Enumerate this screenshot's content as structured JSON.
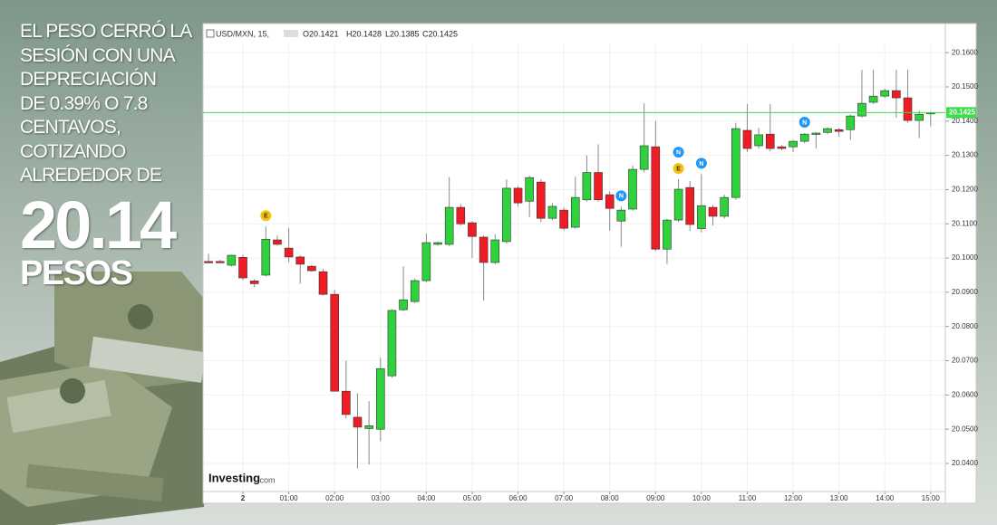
{
  "headline": {
    "lines": [
      "EL PESO CERRÓ LA",
      "SESIÓN CON UNA",
      "DEPRECIACIÓN",
      "DE 0.39% O 7.8",
      "CENTAVOS,",
      "COTIZANDO",
      "ALREDEDOR DE"
    ],
    "big_number": "20.14",
    "unit": "PESOS"
  },
  "chart_data": {
    "type": "candlestick",
    "header": {
      "symbol": "USD/MXN, 15,",
      "open_text": "O20.1421",
      "high_text": "H20.1428",
      "low_text": "L20.1385",
      "close_text": "C20.1425"
    },
    "watermark": {
      "brand": "Investing",
      "suffix": ".com"
    },
    "up_color": "#2fd13c",
    "down_color": "#ee1c25",
    "grid": true,
    "x": [
      -0.75,
      -0.5,
      -0.25,
      0,
      0.25,
      0.5,
      0.75,
      1,
      1.25,
      1.5,
      1.75,
      2,
      2.25,
      2.5,
      2.75,
      3,
      3.25,
      3.5,
      3.75,
      4,
      4.25,
      4.5,
      4.75,
      5,
      5.25,
      5.5,
      5.75,
      6,
      6.25,
      6.5,
      6.75,
      7,
      7.25,
      7.5,
      7.75,
      8,
      8.25,
      8.5,
      8.75,
      9,
      9.25,
      9.5,
      9.75,
      10,
      10.25,
      10.5,
      10.75,
      11,
      11.25,
      11.5,
      11.75,
      12,
      12.25,
      12.5,
      12.75,
      13,
      13.25,
      13.5,
      13.75,
      14,
      14.25,
      14.5,
      14.75,
      15
    ],
    "open": [
      20.099,
      20.099,
      20.0979,
      20.1002,
      20.0933,
      20.095,
      20.1053,
      20.1029,
      20.1003,
      20.0976,
      20.096,
      20.0894,
      20.0611,
      20.0535,
      20.0502,
      20.05,
      20.0656,
      20.0849,
      20.0873,
      20.0934,
      20.104,
      20.104,
      20.1148,
      20.1103,
      20.1061,
      20.0987,
      20.1048,
      20.1204,
      20.1166,
      20.1222,
      20.1116,
      20.114,
      20.109,
      20.117,
      20.125,
      20.1185,
      20.1108,
      20.1143,
      20.1259,
      20.1325,
      20.1026,
      20.1111,
      20.1206,
      20.1086,
      20.1148,
      20.1122,
      20.1177,
      20.1373,
      20.1328,
      20.1362,
      20.1325,
      20.1325,
      20.1341,
      20.1362,
      20.1367,
      20.1375,
      20.1375,
      20.1415,
      20.1455,
      20.1473,
      20.1489,
      20.1468,
      20.1402,
      20.1421
    ],
    "high": [
      20.1012,
      20.0995,
      20.101,
      20.101,
      20.0938,
      20.1092,
      20.1066,
      20.1088,
      20.1008,
      20.098,
      20.0968,
      20.0907,
      20.07,
      20.0605,
      20.0582,
      20.0709,
      20.085,
      20.0976,
      20.094,
      20.1071,
      20.1048,
      20.1237,
      20.1158,
      20.1108,
      20.1066,
      20.107,
      20.123,
      20.121,
      20.124,
      20.123,
      20.116,
      20.1148,
      20.1237,
      20.13,
      20.1332,
      20.1195,
      20.115,
      20.127,
      20.1452,
      20.14,
      20.1115,
      20.123,
      20.1225,
      20.1245,
      20.1155,
      20.1185,
      20.1395,
      20.145,
      20.138,
      20.145,
      20.133,
      20.1345,
      20.1365,
      20.1368,
      20.1382,
      20.138,
      20.142,
      20.155,
      20.155,
      20.1495,
      20.155,
      20.155,
      20.143,
      20.1428
    ],
    "low": [
      20.0985,
      20.0986,
      20.0975,
      20.0935,
      20.0915,
      20.0946,
      20.1036,
      20.0987,
      20.0925,
      20.096,
      20.089,
      20.0611,
      20.0532,
      20.0385,
      20.0397,
      20.0465,
      20.065,
      20.0845,
      20.0868,
      20.093,
      20.1036,
      20.1035,
      20.1095,
      20.1,
      20.0875,
      20.0982,
      20.1042,
      20.115,
      20.112,
      20.1105,
      20.111,
      20.108,
      20.1085,
      20.1165,
      20.1165,
      20.108,
      20.1033,
      20.1138,
      20.125,
      20.102,
      20.0983,
      20.1105,
      20.108,
      20.1075,
      20.1095,
      20.1115,
      20.117,
      20.131,
      20.132,
      20.1312,
      20.1315,
      20.131,
      20.1335,
      20.132,
      20.1362,
      20.1355,
      20.1345,
      20.141,
      20.145,
      20.1468,
      20.141,
      20.1395,
      20.135,
      20.1385
    ],
    "close": [
      20.0989,
      20.0988,
      20.1008,
      20.0942,
      20.0925,
      20.1055,
      20.104,
      20.1003,
      20.0982,
      20.0963,
      20.0894,
      20.0611,
      20.0543,
      20.0506,
      20.051,
      20.0677,
      20.0847,
      20.0878,
      20.0934,
      20.1045,
      20.1045,
      20.1148,
      20.11,
      20.1063,
      20.0987,
      20.1053,
      20.1204,
      20.1161,
      20.1235,
      20.1116,
      20.1151,
      20.1087,
      20.1177,
      20.125,
      20.117,
      20.1145,
      20.114,
      20.1259,
      20.1328,
      20.1026,
      20.1111,
      20.1201,
      20.1098,
      20.1153,
      20.1122,
      20.1177,
      20.1378,
      20.132,
      20.136,
      20.132,
      20.132,
      20.1341,
      20.1362,
      20.1365,
      20.1378,
      20.137,
      20.1415,
      20.1452,
      20.1473,
      20.1489,
      20.1468,
      20.1402,
      20.142,
      20.1425
    ],
    "xlim": [
      -0.87,
      15.32
    ],
    "xticks": [
      {
        "value": 0,
        "label": "2"
      },
      {
        "value": 1,
        "label": "01:00"
      },
      {
        "value": 2,
        "label": "02:00"
      },
      {
        "value": 3,
        "label": "03:00"
      },
      {
        "value": 4,
        "label": "04:00"
      },
      {
        "value": 5,
        "label": "05:00"
      },
      {
        "value": 6,
        "label": "06:00"
      },
      {
        "value": 7,
        "label": "07:00"
      },
      {
        "value": 8,
        "label": "08:00"
      },
      {
        "value": 9,
        "label": "09:00"
      },
      {
        "value": 10,
        "label": "10:00"
      },
      {
        "value": 11,
        "label": "11:00"
      },
      {
        "value": 12,
        "label": "12:00"
      },
      {
        "value": 13,
        "label": "13:00"
      },
      {
        "value": 14,
        "label": "14:00"
      },
      {
        "value": 15,
        "label": "15:00"
      }
    ],
    "ylim": [
      20.0318,
      20.1685
    ],
    "yticks": [
      {
        "value": 20.04,
        "label": "20.0400"
      },
      {
        "value": 20.05,
        "label": "20.0500"
      },
      {
        "value": 20.06,
        "label": "20.0600"
      },
      {
        "value": 20.07,
        "label": "20.0700"
      },
      {
        "value": 20.08,
        "label": "20.0800"
      },
      {
        "value": 20.09,
        "label": "20.0900"
      },
      {
        "value": 20.1,
        "label": "20.1000"
      },
      {
        "value": 20.11,
        "label": "20.1100"
      },
      {
        "value": 20.12,
        "label": "20.1200"
      },
      {
        "value": 20.13,
        "label": "20.1300"
      },
      {
        "value": 20.14,
        "label": "20.1400"
      },
      {
        "value": 20.15,
        "label": "20.1500"
      },
      {
        "value": 20.16,
        "label": "20.1600"
      }
    ],
    "last_price": {
      "value": 20.1425,
      "label": "20.1425",
      "color": "#3ddc4a"
    },
    "events": [
      {
        "label": "E",
        "x": 0.5,
        "color": "#f4c20d"
      },
      {
        "label": "N",
        "x": 8.25,
        "color": "#2196f3"
      },
      {
        "label": "E",
        "x": 9.5,
        "color": "#f4c20d"
      },
      {
        "label": "N",
        "x": 9.5,
        "color": "#2196f3"
      },
      {
        "label": "N",
        "x": 10,
        "color": "#2196f3"
      },
      {
        "label": "N",
        "x": 12.25,
        "color": "#2196f3"
      }
    ]
  }
}
